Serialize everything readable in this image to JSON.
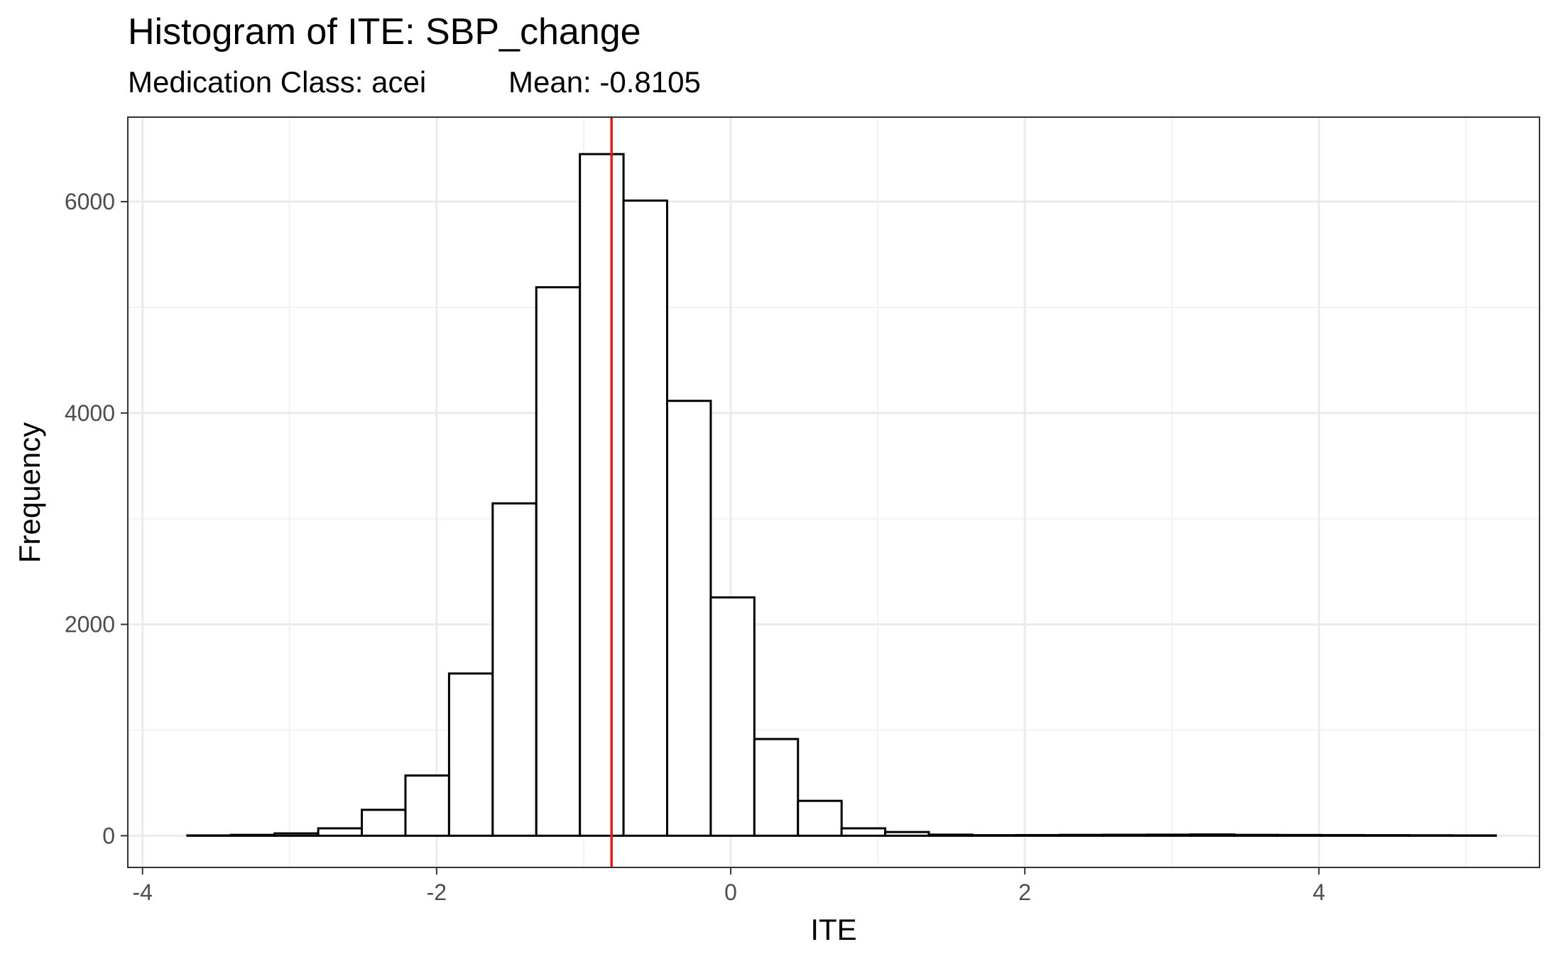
{
  "chart_data": {
    "type": "bar",
    "title": "Histogram of ITE: SBP_change",
    "subtitle_left": "Medication Class: acei",
    "subtitle_right": "Mean: -0.8105",
    "xlabel": "ITE",
    "ylabel": "Frequency",
    "xlim": [
      -4.1,
      5.5
    ],
    "ylim": [
      -300,
      6800
    ],
    "x_ticks": [
      -4,
      -2,
      0,
      2,
      4
    ],
    "x_tick_labels": [
      "-4",
      "-2",
      "0",
      "2",
      "4"
    ],
    "y_ticks": [
      0,
      2000,
      4000,
      6000
    ],
    "y_tick_labels": [
      "0",
      "2000",
      "4000",
      "6000"
    ],
    "grid": true,
    "bin_width": 0.2966,
    "bin_start": -3.695,
    "values": [
      3,
      8,
      22,
      70,
      245,
      570,
      1535,
      3145,
      5190,
      6450,
      6010,
      4115,
      2255,
      915,
      330,
      70,
      35,
      10,
      5,
      6,
      8,
      9,
      10,
      12,
      8,
      7,
      6,
      5,
      4,
      3
    ],
    "mean_line": -0.8105,
    "colors": {
      "bar_fill": "#ffffff",
      "bar_stroke": "#000000",
      "mean_line": "#e31a1c",
      "grid_major": "#ebebeb",
      "grid_minor": "#f2f2f2",
      "panel_border": "#333333"
    }
  }
}
